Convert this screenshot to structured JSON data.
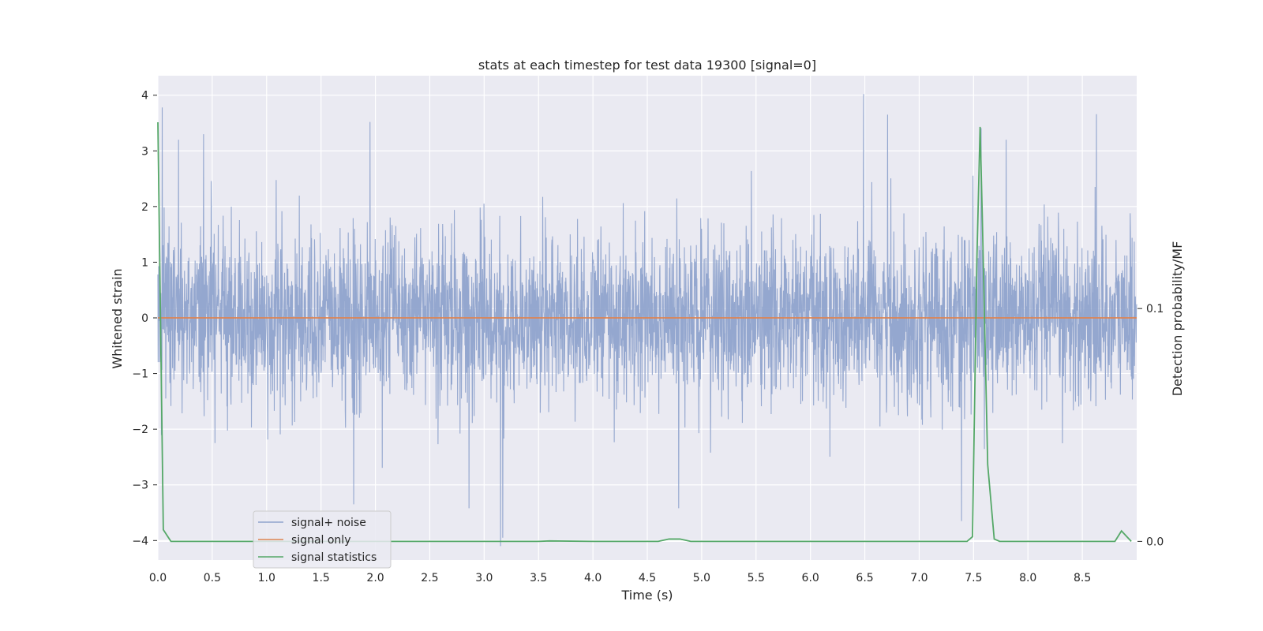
{
  "chart_data": {
    "type": "line",
    "title": "stats at each timestep for test data 19300 [signal=0]",
    "xlabel": "Time (s)",
    "ylabel": "Whitened strain",
    "y2label": "Detection probability/MF",
    "xlim": [
      0.0,
      9.0
    ],
    "ylim": [
      -4.35,
      4.35
    ],
    "y2lim": [
      -0.008,
      0.2
    ],
    "x_ticks": [
      0.0,
      0.5,
      1.0,
      1.5,
      2.0,
      2.5,
      3.0,
      3.5,
      4.0,
      4.5,
      5.0,
      5.5,
      6.0,
      6.5,
      7.0,
      7.5,
      8.0,
      8.5
    ],
    "x_tick_labels": [
      "0.0",
      "0.5",
      "1.0",
      "1.5",
      "2.0",
      "2.5",
      "3.0",
      "3.5",
      "4.0",
      "4.5",
      "5.0",
      "5.5",
      "6.0",
      "6.5",
      "7.0",
      "7.5",
      "8.0",
      "8.5"
    ],
    "y_ticks": [
      4,
      3,
      2,
      1,
      0,
      -1,
      -2,
      -3,
      -4
    ],
    "y_tick_labels": [
      "4",
      "3",
      "2",
      "1",
      "0",
      "−1",
      "−2",
      "−3",
      "−4"
    ],
    "y2_ticks": [
      0.1,
      0.0
    ],
    "y2_tick_labels": [
      "0.1",
      "0.0"
    ],
    "grid": true,
    "legend_position": "lower-left",
    "series": [
      {
        "name": "signal+ noise",
        "axis": "left",
        "color": "#8fa3cc",
        "kind": "noise",
        "x_range": [
          0.0,
          9.0
        ],
        "std": 0.75,
        "peaks": [
          [
            0.04,
            3.78
          ],
          [
            0.19,
            3.2
          ],
          [
            0.42,
            3.3
          ],
          [
            1.95,
            3.52
          ],
          [
            6.49,
            4.02
          ],
          [
            6.71,
            3.65
          ],
          [
            7.57,
            3.41
          ],
          [
            7.8,
            3.2
          ],
          [
            8.63,
            3.66
          ],
          [
            3.15,
            -4.1
          ],
          [
            3.17,
            -3.95
          ],
          [
            2.86,
            -3.42
          ],
          [
            1.8,
            -3.35
          ],
          [
            7.39,
            -3.65
          ],
          [
            4.79,
            -3.42
          ]
        ]
      },
      {
        "name": "signal only",
        "axis": "left",
        "color": "#dd8452",
        "x": [
          0.0,
          9.0
        ],
        "values": [
          0.0,
          0.0
        ]
      },
      {
        "name": "signal statistics",
        "axis": "right",
        "color": "#55a868",
        "x": [
          0.0,
          0.05,
          0.12,
          0.5,
          1.0,
          2.0,
          3.0,
          3.5,
          3.6,
          4.0,
          4.6,
          4.7,
          4.8,
          4.9,
          5.0,
          6.0,
          7.0,
          7.44,
          7.49,
          7.53,
          7.56,
          7.58,
          7.63,
          7.69,
          7.74,
          8.0,
          8.5,
          8.8,
          8.86,
          8.95
        ],
        "values": [
          0.18,
          0.005,
          0.0,
          0.0,
          0.0,
          0.0,
          0.0,
          0.0,
          0.0002,
          0.0,
          0.0,
          0.001,
          0.001,
          0.0,
          0.0,
          0.0,
          0.0,
          0.0,
          0.002,
          0.12,
          0.178,
          0.14,
          0.033,
          0.001,
          0.0,
          0.0,
          0.0,
          0.0,
          0.0045,
          0.0
        ]
      }
    ]
  }
}
